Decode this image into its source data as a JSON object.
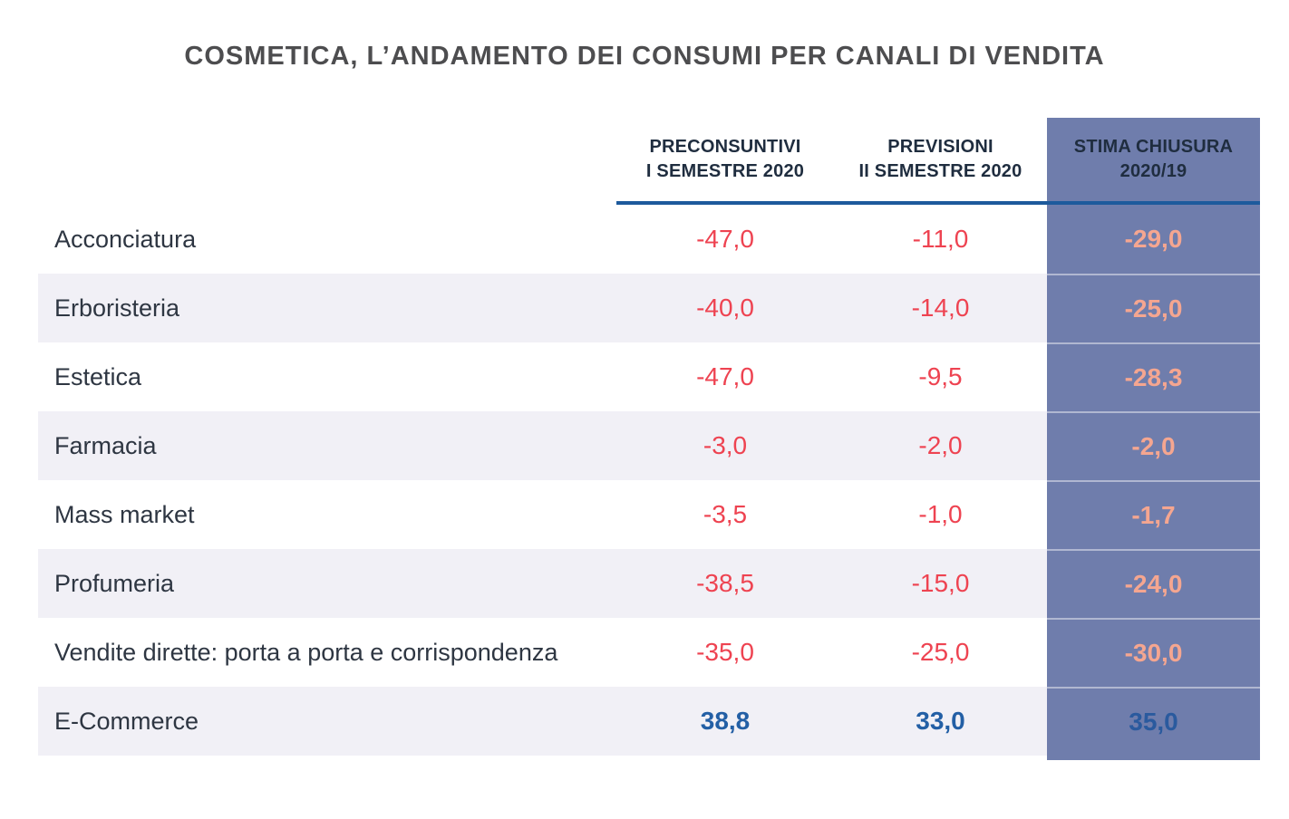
{
  "title": "COSMETICA, L’ANDAMENTO DEI CONSUMI PER CANALI DI VENDITA",
  "header": {
    "col1_line1": "PRECONSUNTIVI",
    "col1_line2": "I SEMESTRE 2020",
    "col2_line1": "PREVISIONI",
    "col2_line2": "II SEMESTRE 2020",
    "col3_line1": "STIMA CHIUSURA",
    "col3_line2": "2020/19"
  },
  "rows": [
    {
      "channel": "Acconciatura",
      "sem1": "-47,0",
      "sem2": "-11,0",
      "stima": "-29,0"
    },
    {
      "channel": "Erboristeria",
      "sem1": "-40,0",
      "sem2": "-14,0",
      "stima": "-25,0"
    },
    {
      "channel": "Estetica",
      "sem1": "-47,0",
      "sem2": "-9,5",
      "stima": "-28,3"
    },
    {
      "channel": "Farmacia",
      "sem1": "-3,0",
      "sem2": "-2,0",
      "stima": "-2,0"
    },
    {
      "channel": "Mass market",
      "sem1": "-3,5",
      "sem2": "-1,0",
      "stima": "-1,7"
    },
    {
      "channel": "Profumeria",
      "sem1": "-38,5",
      "sem2": "-15,0",
      "stima": "-24,0"
    },
    {
      "channel": "Vendite dirette: porta a porta e corrispondenza",
      "sem1": "-35,0",
      "sem2": "-25,0",
      "stima": "-30,0"
    },
    {
      "channel": "E-Commerce",
      "sem1": "38,8",
      "sem2": "33,0",
      "stima": "35,0"
    }
  ],
  "colors": {
    "title_text": "#4d4d4f",
    "header_text": "#1f2d3f",
    "label_text": "#2e3642",
    "negative_value": "#ee4351",
    "positive_value": "#235fa5",
    "highlight_column_bg": "#6f7dac",
    "highlight_negative_value": "#f5a690",
    "highlight_positive_value": "#2a5a9e",
    "alt_row_bg": "#f1f0f6",
    "header_rule": "#1d5a9c"
  },
  "chart_data": {
    "type": "table",
    "title": "COSMETICA, L’ANDAMENTO DEI CONSUMI PER CANALI DI VENDITA",
    "categories": [
      "Acconciatura",
      "Erboristeria",
      "Estetica",
      "Farmacia",
      "Mass market",
      "Profumeria",
      "Vendite dirette: porta a porta e corrispondenza",
      "E-Commerce"
    ],
    "series": [
      {
        "name": "Preconsuntivi I semestre 2020",
        "values": [
          -47.0,
          -40.0,
          -47.0,
          -3.0,
          -3.5,
          -38.5,
          -35.0,
          38.8
        ]
      },
      {
        "name": "Previsioni II semestre 2020",
        "values": [
          -11.0,
          -14.0,
          -9.5,
          -2.0,
          -1.0,
          -15.0,
          -25.0,
          33.0
        ]
      },
      {
        "name": "Stima chiusura 2020/19",
        "values": [
          -29.0,
          -25.0,
          -28.3,
          -2.0,
          -1.7,
          -24.0,
          -30.0,
          35.0
        ]
      }
    ],
    "layout_hints": {
      "highlighted_series": "Stima chiusura 2020/19",
      "negative_color": "#ee4351",
      "positive_color": "#235fa5",
      "decimal_separator": ","
    }
  }
}
